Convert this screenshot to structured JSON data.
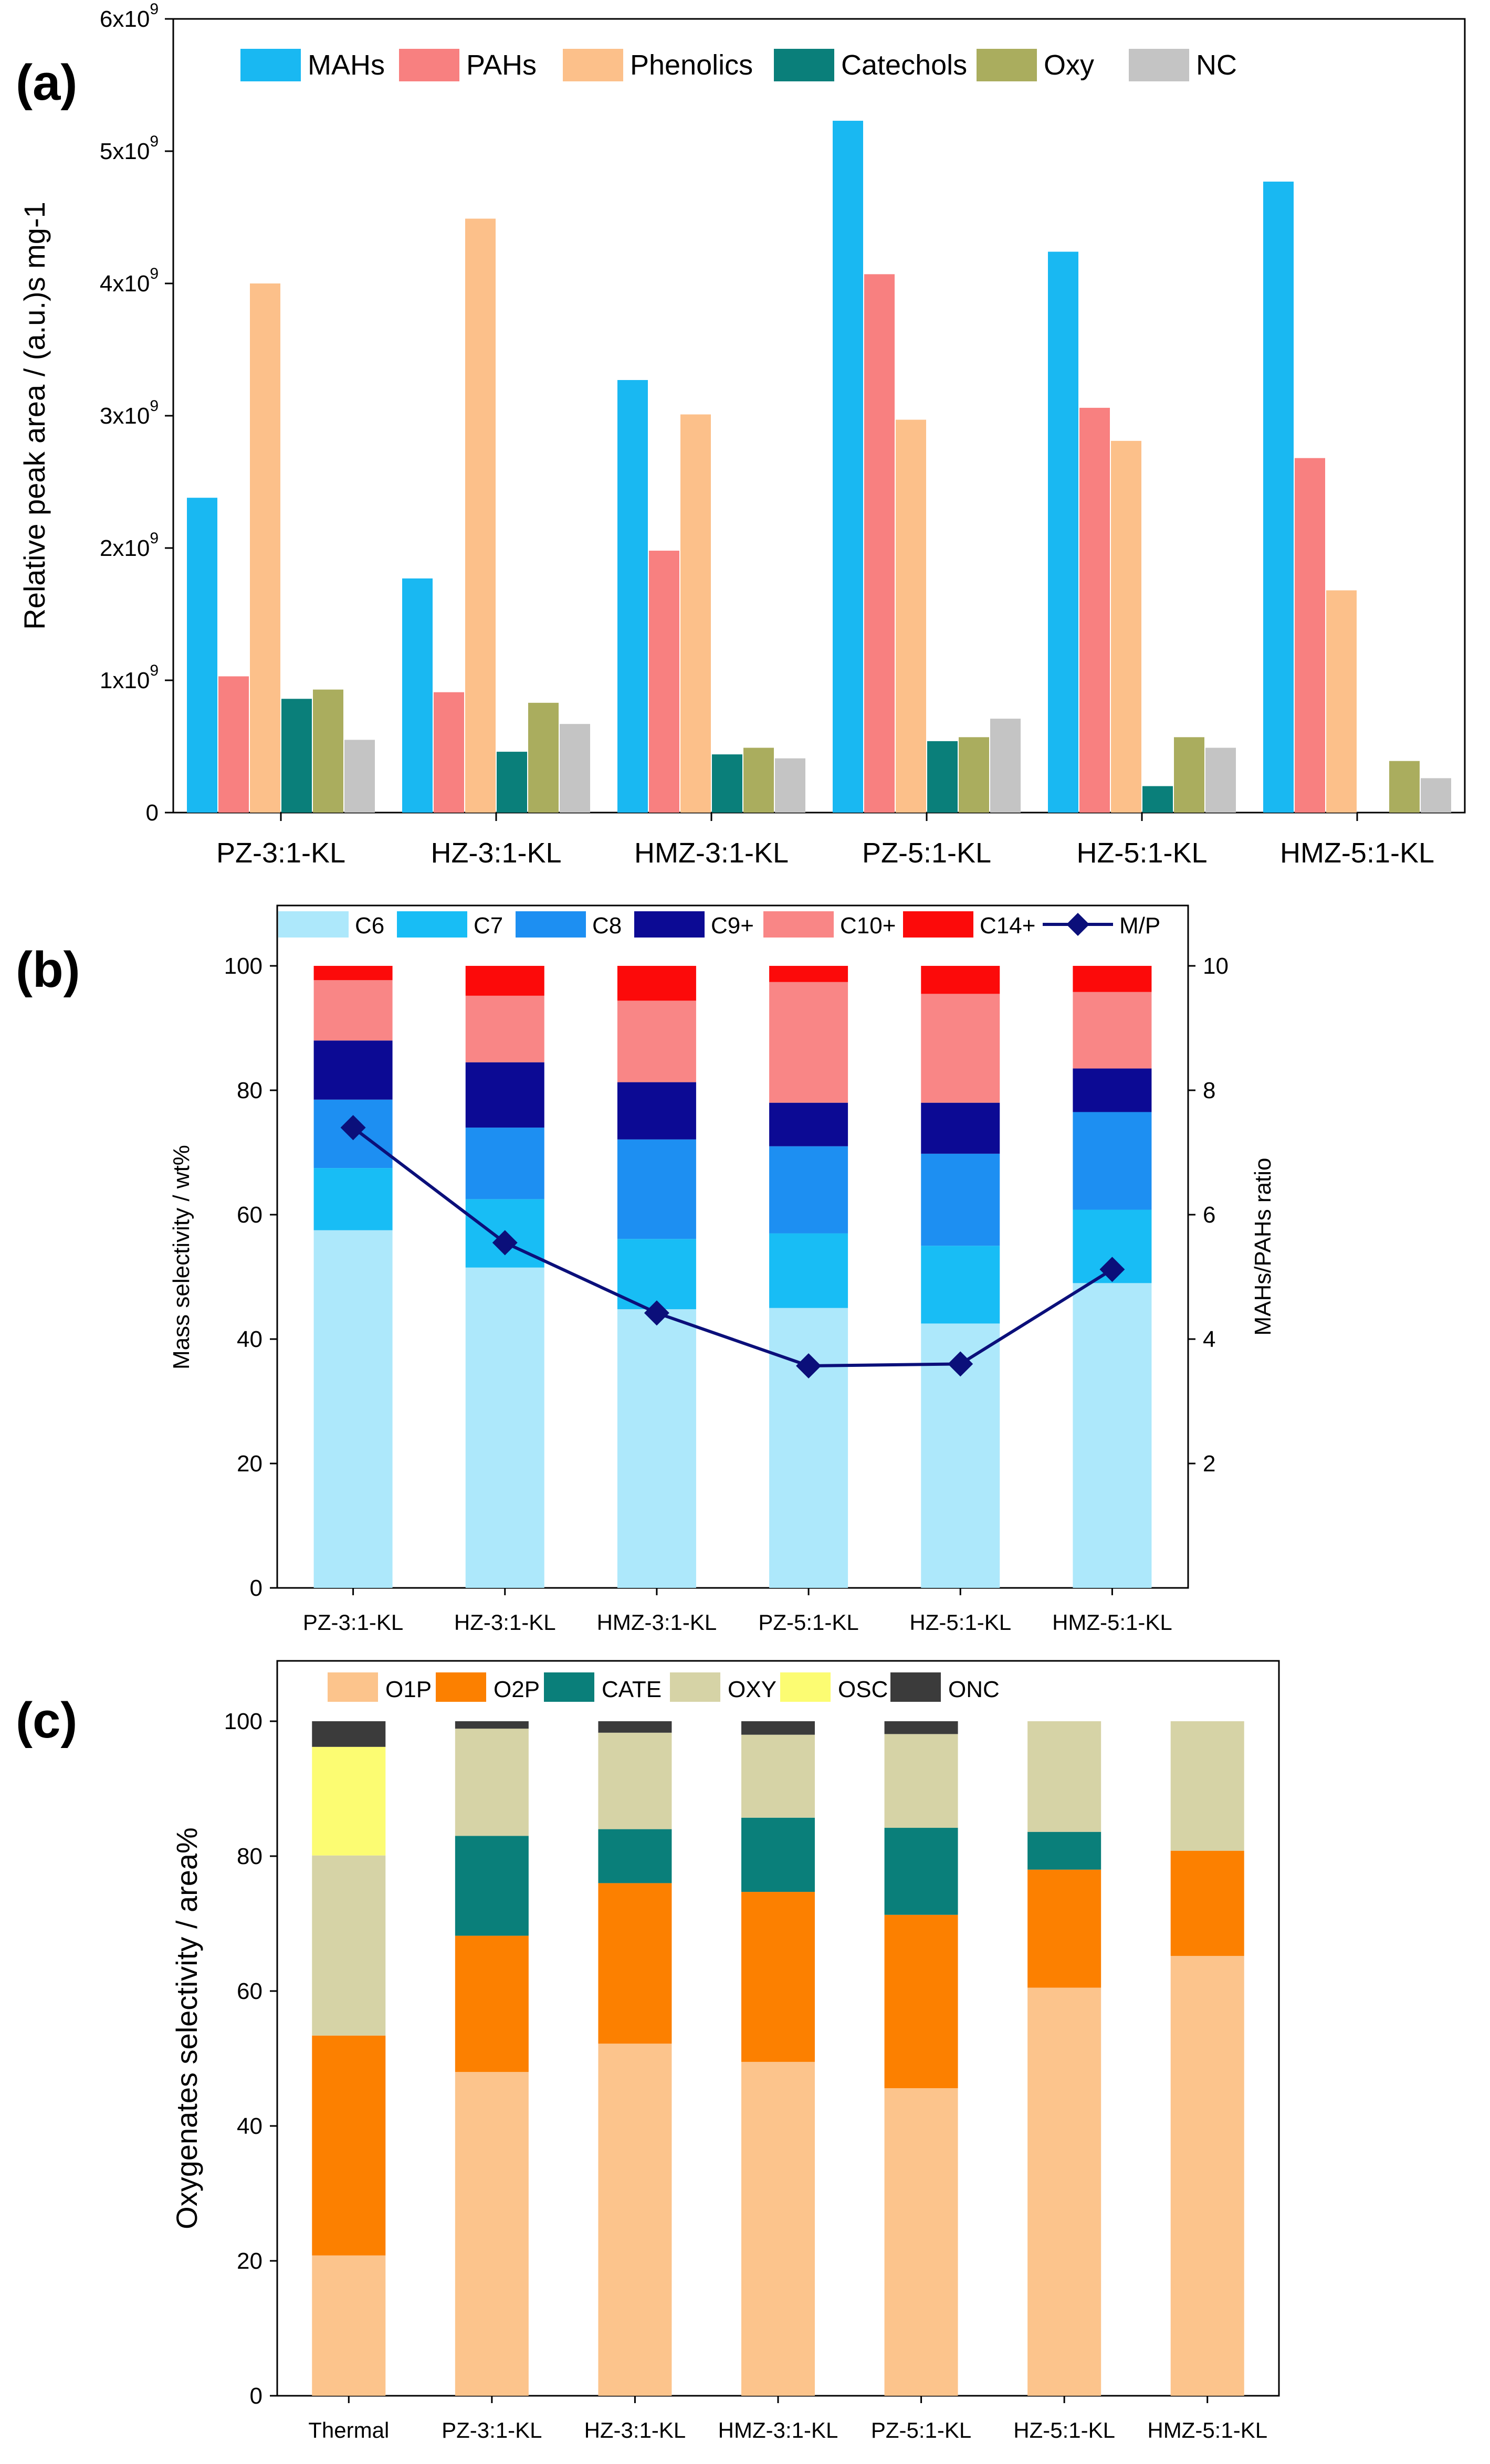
{
  "chart_data": [
    {
      "panel": "(a)",
      "type": "bar",
      "categories": [
        "PZ-3:1-KL",
        "HZ-3:1-KL",
        "HMZ-3:1-KL",
        "PZ-5:1-KL",
        "HZ-5:1-KL",
        "HMZ-5:1-KL"
      ],
      "series": [
        {
          "name": "MAHs",
          "color": "#19b8f2",
          "values": [
            2.38,
            1.77,
            3.27,
            5.23,
            4.24,
            4.77
          ]
        },
        {
          "name": "PAHs",
          "color": "#f88080",
          "values": [
            1.03,
            0.91,
            1.98,
            4.07,
            3.06,
            2.68
          ]
        },
        {
          "name": "Phenolics",
          "color": "#fcc08a",
          "values": [
            4.0,
            4.49,
            3.01,
            2.97,
            2.81,
            1.68
          ]
        },
        {
          "name": "Catechols",
          "color": "#0a7f7a",
          "values": [
            0.86,
            0.46,
            0.44,
            0.54,
            0.2,
            0
          ]
        },
        {
          "name": "Oxy",
          "color": "#aaad5e",
          "values": [
            0.93,
            0.83,
            0.49,
            0.57,
            0.57,
            0.39
          ]
        },
        {
          "name": "NC",
          "color": "#c4c4c4",
          "values": [
            0.55,
            0.67,
            0.41,
            0.71,
            0.49,
            0.26
          ]
        }
      ],
      "ylabel": "Relative peak area / (a.u.)s mg-1",
      "ylim": [
        0,
        6
      ],
      "yticks": [
        "0",
        "1x10",
        "2x10",
        "3x10",
        "4x10",
        "5x10",
        "6x10"
      ],
      "ytick_exponent": "9"
    },
    {
      "panel": "(b)",
      "type": "bar",
      "stacked": true,
      "categories": [
        "PZ-3:1-KL",
        "HZ-3:1-KL",
        "HMZ-3:1-KL",
        "PZ-5:1-KL",
        "HZ-5:1-KL",
        "HMZ-5:1-KL"
      ],
      "series": [
        {
          "name": "C6",
          "color": "#ade8fb",
          "values": [
            57.5,
            51.5,
            44.8,
            45.0,
            42.5,
            49.0
          ]
        },
        {
          "name": "C7",
          "color": "#18bdf5",
          "values": [
            10.0,
            11.0,
            11.3,
            12.0,
            12.5,
            11.8
          ]
        },
        {
          "name": "C8",
          "color": "#1d8ff2",
          "values": [
            11.0,
            11.5,
            16.0,
            14.0,
            14.8,
            15.7
          ]
        },
        {
          "name": "C9+",
          "color": "#0c0a94",
          "values": [
            9.5,
            10.5,
            9.2,
            7.0,
            8.2,
            7.0
          ]
        },
        {
          "name": "C10+",
          "color": "#f98686",
          "values": [
            9.7,
            10.7,
            13.1,
            19.4,
            17.5,
            12.3
          ]
        },
        {
          "name": "C14+",
          "color": "#fc0a0a",
          "values": [
            2.3,
            4.8,
            5.6,
            2.6,
            4.5,
            4.2
          ]
        }
      ],
      "line_series": {
        "name": "M/P",
        "color": "#0b0f7a",
        "axis": "right",
        "values": [
          7.4,
          5.55,
          4.42,
          3.57,
          3.6,
          5.12
        ]
      },
      "ylabel": "Mass selectivity / wt%",
      "y2label": "MAHs/PAHs ratio",
      "ylim": [
        0,
        100
      ],
      "yticks": [
        "0",
        "20",
        "40",
        "60",
        "80",
        "100"
      ],
      "y2lim": [
        0,
        10
      ],
      "y2ticks": [
        "2",
        "4",
        "6",
        "8",
        "10"
      ]
    },
    {
      "panel": "(c)",
      "type": "bar",
      "stacked": true,
      "categories": [
        "Thermal",
        "PZ-3:1-KL",
        "HZ-3:1-KL",
        "HMZ-3:1-KL",
        "PZ-5:1-KL",
        "HZ-5:1-KL",
        "HMZ-5:1-KL"
      ],
      "series": [
        {
          "name": "O1P",
          "color": "#fcc48c",
          "values": [
            20.8,
            48.0,
            52.2,
            49.5,
            45.6,
            60.5,
            65.2
          ]
        },
        {
          "name": "O2P",
          "color": "#fc8000",
          "values": [
            32.6,
            20.2,
            23.8,
            25.2,
            25.7,
            17.5,
            15.6
          ]
        },
        {
          "name": "CATE",
          "color": "#0a7f7a",
          "values": [
            0,
            14.8,
            8.0,
            11.0,
            12.9,
            5.6,
            0
          ]
        },
        {
          "name": "OXY",
          "color": "#d6d3a6",
          "values": [
            26.7,
            15.9,
            14.3,
            12.3,
            13.9,
            16.4,
            19.2
          ]
        },
        {
          "name": "OSC",
          "color": "#fcfc72",
          "values": [
            16.1,
            0,
            0,
            0,
            0,
            0,
            0
          ]
        },
        {
          "name": "ONC",
          "color": "#3b3b3b",
          "values": [
            3.8,
            1.1,
            1.7,
            2.0,
            1.9,
            0,
            0
          ]
        }
      ],
      "ylabel": "Oxygenates selectivity / area%",
      "ylim": [
        0,
        100
      ],
      "yticks": [
        "0",
        "20",
        "40",
        "60",
        "80",
        "100"
      ]
    }
  ]
}
